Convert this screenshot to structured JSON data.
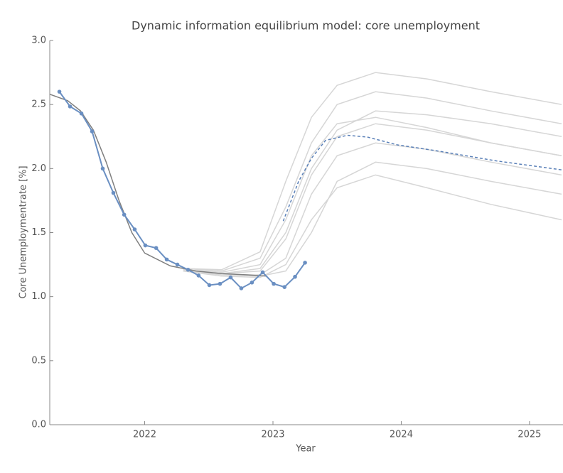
{
  "chart_data": {
    "type": "line",
    "title": "Dynamic information equilibrium model: core unemployment",
    "xlabel": "Year",
    "ylabel": "Core Unemploymentrate [%]",
    "xlim": [
      2021.26,
      2025.25
    ],
    "ylim": [
      0,
      3
    ],
    "xticks": [
      2022,
      2023,
      2024,
      2025
    ],
    "yticks": [
      {
        "value": 0,
        "label": "0.0"
      },
      {
        "value": 0.5,
        "label": "0.5"
      },
      {
        "value": 1,
        "label": "1.0"
      },
      {
        "value": 1.5,
        "label": "1.5"
      },
      {
        "value": 2,
        "label": "2.0"
      },
      {
        "value": 2.5,
        "label": "2.5"
      },
      {
        "value": 3,
        "label": "3.0"
      }
    ],
    "series": [
      {
        "color": "#d6d6d6",
        "x": [
          2022.3,
          2022.6,
          2022.9,
          2023.1,
          2023.3,
          2023.5,
          2023.8,
          2024.2,
          2024.7,
          2025.25
        ],
        "values": [
          1.21,
          1.18,
          1.22,
          1.5,
          2.0,
          2.3,
          2.45,
          2.42,
          2.35,
          2.25
        ]
      },
      {
        "color": "#d6d6d6",
        "x": [
          2022.3,
          2022.6,
          2022.9,
          2023.1,
          2023.3,
          2023.5,
          2023.8,
          2024.2,
          2024.7,
          2025.25
        ],
        "values": [
          1.21,
          1.17,
          1.17,
          1.3,
          1.8,
          2.1,
          2.2,
          2.15,
          2.05,
          1.95
        ]
      },
      {
        "color": "#d6d6d6",
        "x": [
          2022.3,
          2022.6,
          2022.9,
          2023.1,
          2023.3,
          2023.5,
          2023.8,
          2024.2,
          2024.7,
          2025.25
        ],
        "values": [
          1.22,
          1.2,
          1.3,
          1.7,
          2.2,
          2.5,
          2.6,
          2.55,
          2.45,
          2.35
        ]
      },
      {
        "color": "#d6d6d6",
        "x": [
          2022.3,
          2022.6,
          2022.9,
          2023.1,
          2023.3,
          2023.5,
          2023.8,
          2024.2,
          2024.7,
          2025.25
        ],
        "values": [
          1.2,
          1.17,
          1.16,
          1.2,
          1.5,
          1.9,
          2.05,
          2.0,
          1.9,
          1.8
        ]
      },
      {
        "color": "#d6d6d6",
        "x": [
          2022.3,
          2022.6,
          2022.9,
          2023.1,
          2023.3,
          2023.5,
          2023.8,
          2024.2,
          2024.7,
          2025.25
        ],
        "values": [
          1.21,
          1.19,
          1.25,
          1.6,
          2.1,
          2.35,
          2.4,
          2.32,
          2.2,
          2.1
        ]
      },
      {
        "color": "#d6d6d6",
        "x": [
          2022.3,
          2022.6,
          2022.9,
          2023.1,
          2023.3,
          2023.5,
          2023.8,
          2024.2,
          2024.7,
          2025.25
        ],
        "values": [
          1.22,
          1.21,
          1.35,
          1.9,
          2.4,
          2.65,
          2.75,
          2.7,
          2.6,
          2.5
        ]
      },
      {
        "color": "#d6d6d6",
        "x": [
          2022.3,
          2022.6,
          2022.9,
          2023.1,
          2023.3,
          2023.5,
          2023.8,
          2024.2,
          2024.7,
          2025.25
        ],
        "values": [
          1.2,
          1.16,
          1.15,
          1.25,
          1.6,
          1.85,
          1.95,
          1.85,
          1.72,
          1.6
        ]
      },
      {
        "color": "#d6d6d6",
        "x": [
          2022.3,
          2022.6,
          2022.9,
          2023.1,
          2023.3,
          2023.5,
          2023.8,
          2024.2,
          2024.7,
          2025.25
        ],
        "values": [
          1.21,
          1.18,
          1.2,
          1.45,
          1.95,
          2.25,
          2.35,
          2.3,
          2.2,
          2.1
        ]
      },
      {
        "color": "#7f7f7f",
        "x": [
          2021.26,
          2021.4,
          2021.5,
          2021.6,
          2021.7,
          2021.8,
          2021.9,
          2022.0,
          2022.2,
          2022.4,
          2022.6,
          2022.8,
          2022.95
        ],
        "values": [
          2.58,
          2.53,
          2.45,
          2.3,
          2.05,
          1.75,
          1.5,
          1.34,
          1.24,
          1.2,
          1.18,
          1.17,
          1.16
        ]
      },
      {
        "color": "#6a8fc2",
        "markers": true,
        "x": [
          2021.335,
          2021.418,
          2021.507,
          2021.59,
          2021.673,
          2021.756,
          2021.84,
          2021.922,
          2022.005,
          2022.089,
          2022.172,
          2022.255,
          2022.338,
          2022.42,
          2022.504,
          2022.587,
          2022.67,
          2022.753,
          2022.836,
          2022.92,
          2023.006,
          2023.09,
          2023.172,
          2023.25
        ],
        "values": [
          2.6,
          2.485,
          2.43,
          2.29,
          2.0,
          1.81,
          1.64,
          1.525,
          1.4,
          1.38,
          1.29,
          1.25,
          1.21,
          1.165,
          1.09,
          1.1,
          1.15,
          1.065,
          1.11,
          1.19,
          1.1,
          1.075,
          1.155,
          1.265
        ]
      },
      {
        "color": "#5a80b8",
        "dashed": true,
        "x": [
          2023.08,
          2023.2,
          2023.3,
          2023.41,
          2023.58,
          2023.74,
          2023.97,
          2024.3,
          2024.74,
          2025.25
        ],
        "values": [
          1.59,
          1.9,
          2.08,
          2.22,
          2.26,
          2.245,
          2.185,
          2.135,
          2.06,
          1.99
        ]
      }
    ]
  }
}
